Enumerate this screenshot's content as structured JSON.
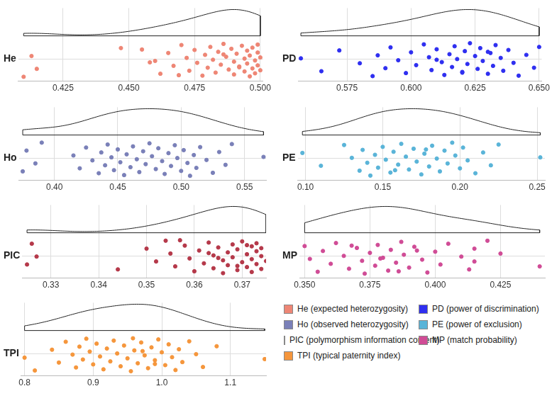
{
  "chart_data": [
    {
      "type": "raincloud",
      "label": "He",
      "name": "He (expected heterozygosity)",
      "color": "#ee8675",
      "xlim": [
        0.408,
        0.501
      ],
      "xticks": [
        0.425,
        {
          "value": 0.45,
          "label": "0.450"
        },
        0.475,
        {
          "value": 0.5,
          "label": "0.500"
        }
      ],
      "values": [
        0.41,
        0.413,
        0.415,
        0.447,
        0.46,
        0.462,
        0.465,
        0.467,
        0.47,
        0.472,
        0.473,
        0.475,
        0.476,
        0.478,
        0.479,
        0.48,
        0.481,
        0.482,
        0.483,
        0.484,
        0.485,
        0.486,
        0.487,
        0.488,
        0.489,
        0.49,
        0.49,
        0.491,
        0.492,
        0.493,
        0.494,
        0.494,
        0.495,
        0.495,
        0.496,
        0.496,
        0.497,
        0.497,
        0.498,
        0.498,
        0.499,
        0.499,
        0.499,
        0.5,
        0.5,
        0.455,
        0.458,
        0.469,
        0.486,
        0.492
      ]
    },
    {
      "type": "raincloud",
      "label": "Ho",
      "name": "Ho (observed heterozygosity)",
      "color": "#7a80b8",
      "xlim": [
        0.372,
        0.567
      ],
      "xticks": [
        {
          "value": 0.4,
          "label": "0.40"
        },
        0.45,
        {
          "value": 0.5,
          "label": "0.50"
        },
        0.55
      ],
      "values": [
        0.375,
        0.378,
        0.385,
        0.39,
        0.415,
        0.42,
        0.425,
        0.43,
        0.435,
        0.437,
        0.44,
        0.442,
        0.445,
        0.447,
        0.45,
        0.452,
        0.455,
        0.457,
        0.46,
        0.462,
        0.465,
        0.467,
        0.47,
        0.472,
        0.475,
        0.477,
        0.48,
        0.482,
        0.485,
        0.487,
        0.49,
        0.492,
        0.495,
        0.497,
        0.5,
        0.502,
        0.505,
        0.507,
        0.51,
        0.512,
        0.515,
        0.52,
        0.525,
        0.53,
        0.535,
        0.54,
        0.565
      ]
    },
    {
      "type": "raincloud",
      "label": "PIC",
      "name": "PIC (polymorphism information content)",
      "color": "#b5394a",
      "xlim": [
        0.324,
        0.375
      ],
      "xticks": [
        0.33,
        0.34,
        0.35,
        0.36,
        0.37
      ],
      "values": [
        0.325,
        0.326,
        0.327,
        0.344,
        0.35,
        0.352,
        0.354,
        0.355,
        0.356,
        0.358,
        0.359,
        0.36,
        0.361,
        0.362,
        0.363,
        0.364,
        0.364,
        0.365,
        0.366,
        0.366,
        0.367,
        0.367,
        0.368,
        0.368,
        0.369,
        0.369,
        0.37,
        0.37,
        0.371,
        0.371,
        0.372,
        0.372,
        0.372,
        0.373,
        0.373,
        0.373,
        0.374,
        0.374,
        0.374,
        0.375,
        0.357,
        0.363,
        0.369,
        0.371,
        0.365
      ]
    },
    {
      "type": "raincloud",
      "label": "TPI",
      "name": "TPI (typical paternity index)",
      "color": "#f5963c",
      "xlim": [
        0.795,
        1.152
      ],
      "xticks": [
        0.8,
        0.9,
        {
          "value": 1.0,
          "label": "1.0"
        },
        1.1
      ],
      "values": [
        0.8,
        0.815,
        0.84,
        0.85,
        0.86,
        0.87,
        0.875,
        0.88,
        0.885,
        0.89,
        0.895,
        0.9,
        0.905,
        0.91,
        0.915,
        0.92,
        0.925,
        0.93,
        0.935,
        0.94,
        0.945,
        0.95,
        0.955,
        0.96,
        0.965,
        0.97,
        0.975,
        0.98,
        0.985,
        0.99,
        0.995,
        1.0,
        1.005,
        1.01,
        1.015,
        1.02,
        1.025,
        1.03,
        1.04,
        1.05,
        1.06,
        1.08,
        1.15,
        0.958,
        0.972,
        0.99
      ]
    },
    {
      "type": "raincloud",
      "label": "PD",
      "name": "PD (power of discrimination)",
      "color": "#2f2ff0",
      "xlim": [
        0.556,
        0.651
      ],
      "xticks": [
        0.575,
        {
          "value": 0.6,
          "label": "0.600"
        },
        0.625,
        {
          "value": 0.65,
          "label": "0.650"
        }
      ],
      "values": [
        0.557,
        0.565,
        0.572,
        0.58,
        0.585,
        0.587,
        0.59,
        0.592,
        0.595,
        0.598,
        0.6,
        0.602,
        0.605,
        0.607,
        0.608,
        0.61,
        0.612,
        0.613,
        0.615,
        0.616,
        0.617,
        0.618,
        0.62,
        0.621,
        0.622,
        0.623,
        0.625,
        0.626,
        0.627,
        0.628,
        0.63,
        0.631,
        0.632,
        0.633,
        0.635,
        0.636,
        0.638,
        0.64,
        0.642,
        0.645,
        0.648,
        0.65,
        0.61,
        0.62,
        0.63
      ]
    },
    {
      "type": "raincloud",
      "label": "PE",
      "name": "PE (power of exclusion)",
      "color": "#5ab4d8",
      "xlim": [
        0.095,
        0.255
      ],
      "xticks": [
        {
          "value": 0.1,
          "label": "0.10"
        },
        0.15,
        {
          "value": 0.2,
          "label": "0.20"
        },
        0.25
      ],
      "values": [
        0.098,
        0.11,
        0.125,
        0.13,
        0.135,
        0.137,
        0.14,
        0.142,
        0.145,
        0.147,
        0.15,
        0.152,
        0.155,
        0.157,
        0.16,
        0.162,
        0.165,
        0.167,
        0.17,
        0.172,
        0.175,
        0.177,
        0.18,
        0.182,
        0.185,
        0.187,
        0.19,
        0.192,
        0.195,
        0.197,
        0.2,
        0.202,
        0.205,
        0.21,
        0.215,
        0.22,
        0.225,
        0.252,
        0.158,
        0.178
      ]
    },
    {
      "type": "raincloud",
      "label": "MP",
      "name": "MP (match probability)",
      "color": "#d04c96",
      "xlim": [
        0.348,
        0.442
      ],
      "xticks": [
        {
          "value": 0.35,
          "label": "0.350"
        },
        0.375,
        {
          "value": 0.4,
          "label": "0.400"
        },
        0.425
      ],
      "values": [
        0.35,
        0.352,
        0.355,
        0.357,
        0.36,
        0.362,
        0.365,
        0.367,
        0.37,
        0.372,
        0.373,
        0.375,
        0.377,
        0.378,
        0.38,
        0.382,
        0.383,
        0.385,
        0.387,
        0.388,
        0.39,
        0.392,
        0.395,
        0.397,
        0.4,
        0.402,
        0.405,
        0.41,
        0.413,
        0.415,
        0.415,
        0.42,
        0.425,
        0.44,
        0.368,
        0.379,
        0.386,
        0.393
      ]
    }
  ]
}
